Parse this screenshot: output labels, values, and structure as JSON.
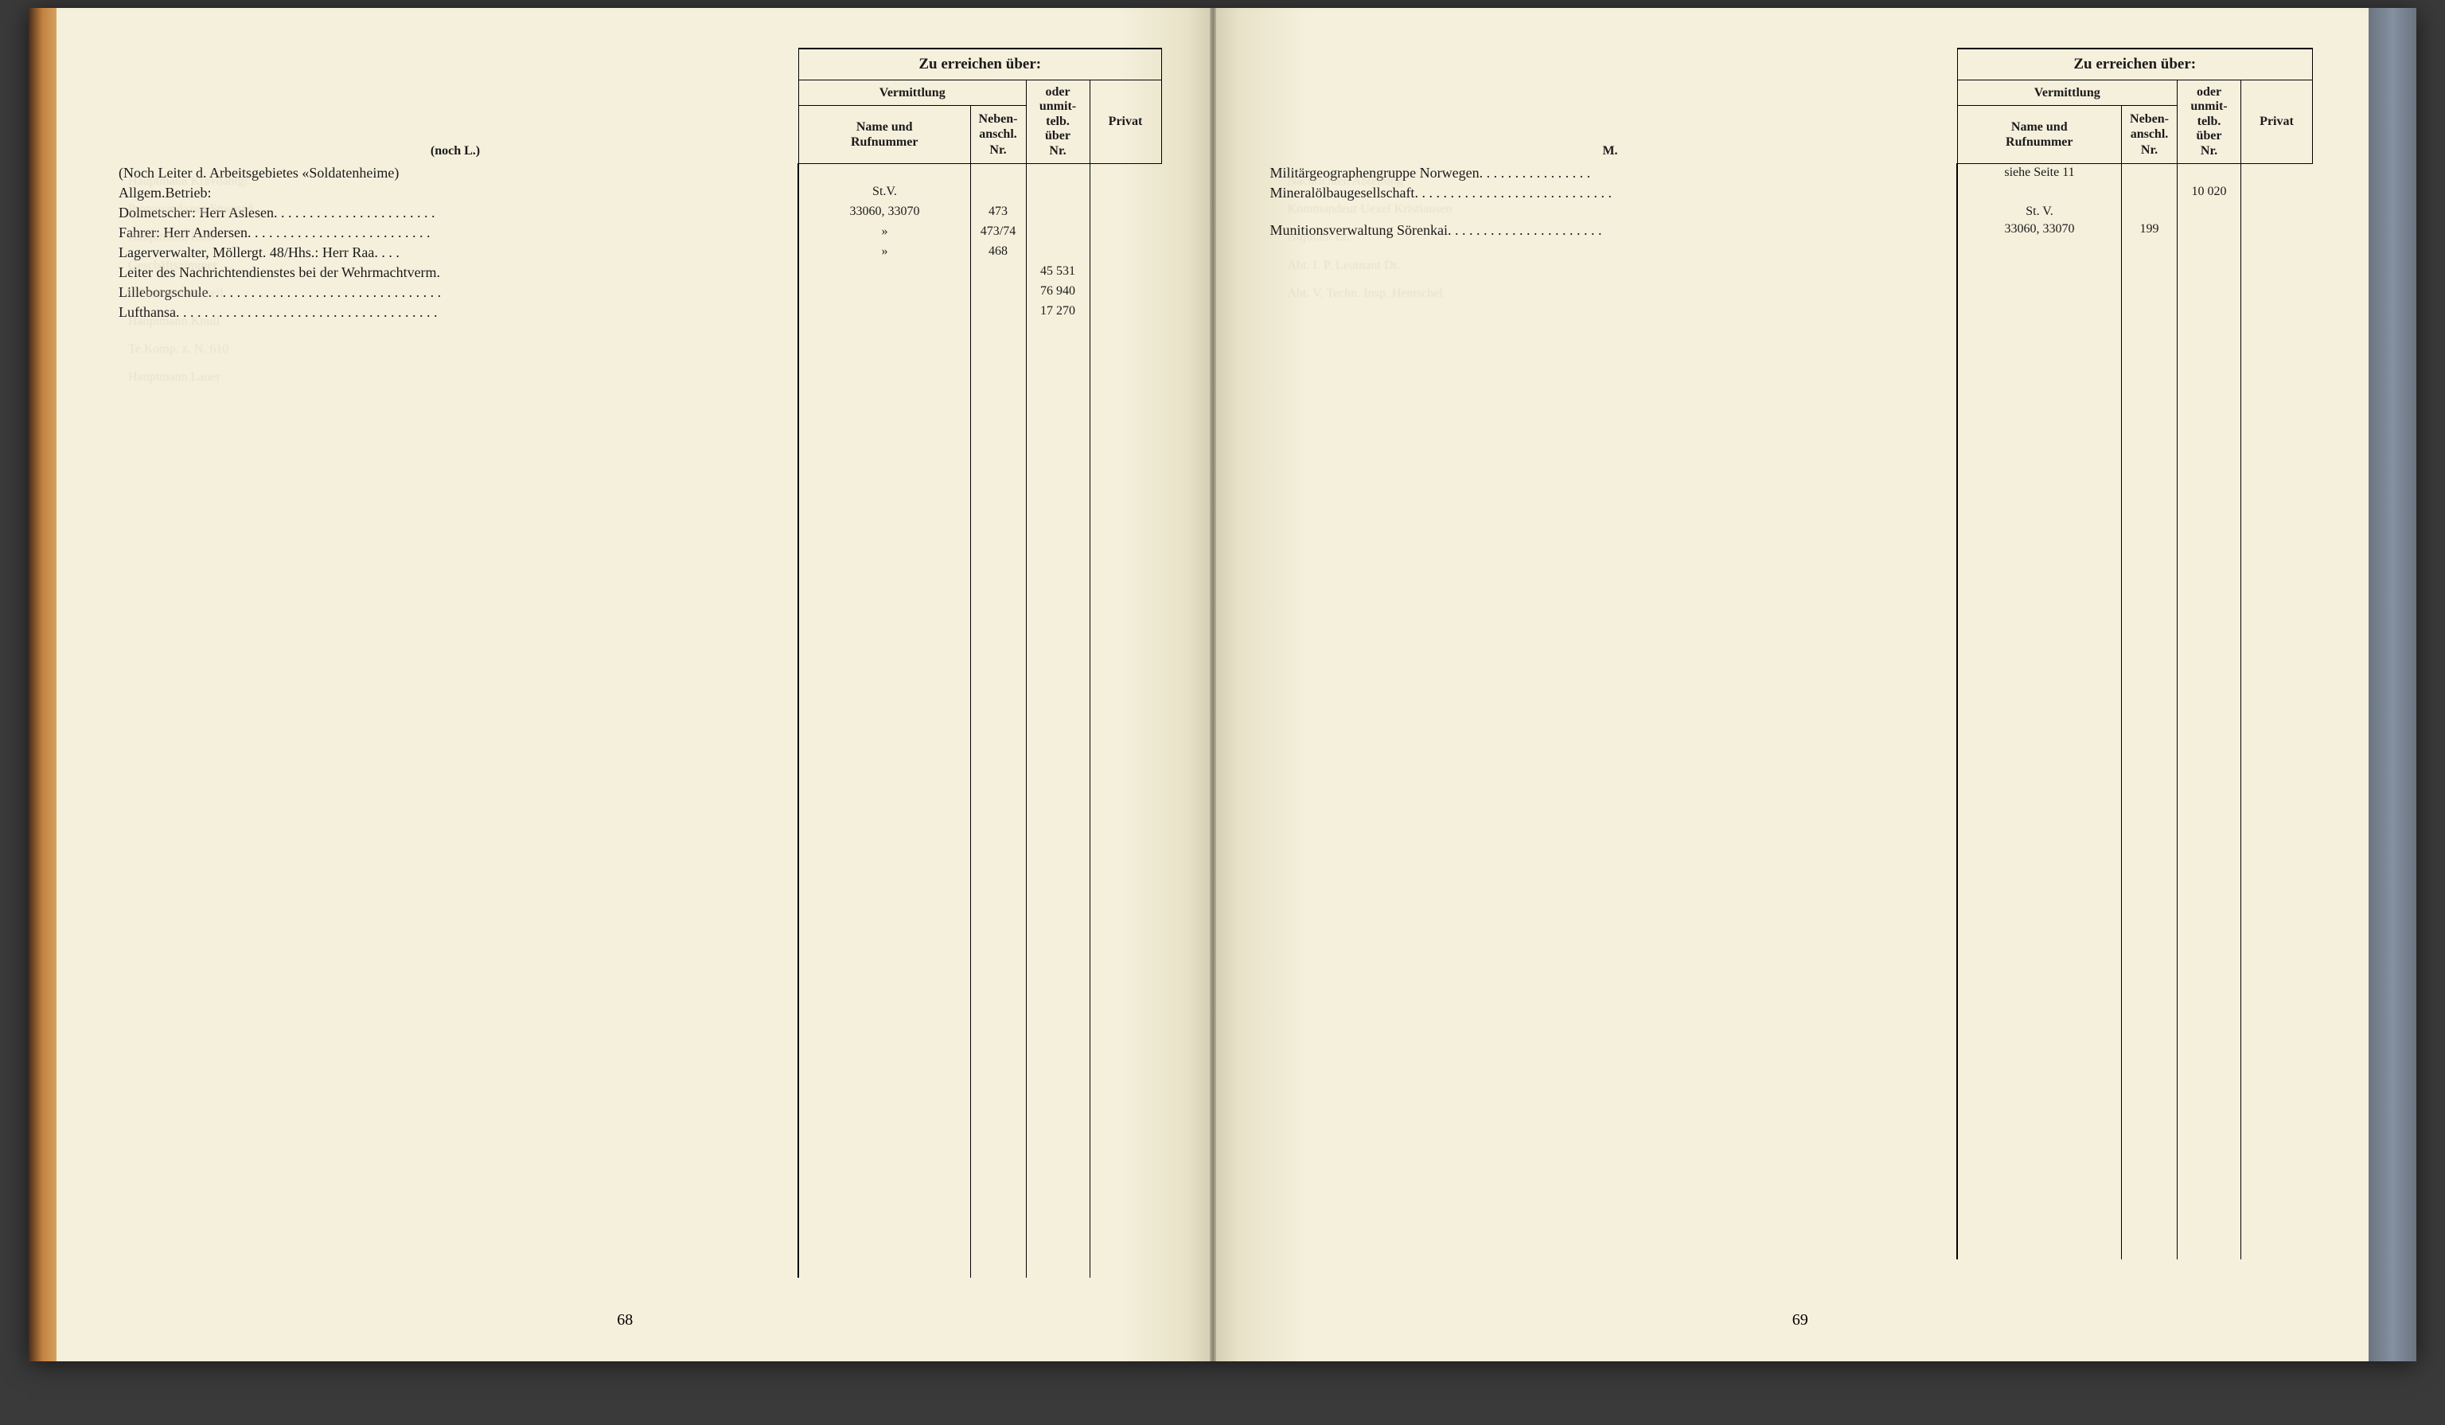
{
  "colors": {
    "page_bg": "#f5f0dc",
    "text": "#1a1a1a",
    "border": "#000000",
    "spine": "#888070",
    "cover_brown": "#c4823e",
    "cover_blue": "#8590a0",
    "bleed": "#d8d3bd"
  },
  "typography": {
    "body_font": "Times New Roman",
    "body_size_pt": 13,
    "header_size_pt": 14
  },
  "table_header": {
    "main": "Zu erreichen über:",
    "vermittlung": "Vermittlung",
    "name_ruf": "Name und\nRufnummer",
    "neben": "Neben-\nanschl.\nNr.",
    "oder": "oder\nunmit-\ntelb.\nüber\nNr.",
    "privat": "Privat"
  },
  "column_widths": {
    "entry": "auto",
    "vermittlung_name": "140px",
    "neben": "70px",
    "unmittelb": "80px",
    "privat": "90px"
  },
  "left_page": {
    "number": "68",
    "section": "(noch L.)",
    "entries": [
      {
        "text": "(Noch Leiter d. Arbeitsgebietes «Soldatenheime)",
        "indent": 0,
        "vermittlung": "",
        "neben": "",
        "unmittelb": "",
        "privat": ""
      },
      {
        "text": "Allgem.Betrieb:",
        "indent": 1,
        "vermittlung": "St.V.",
        "neben": "",
        "unmittelb": "",
        "privat": ""
      },
      {
        "text": "Dolmetscher: Herr Aslesen",
        "dots": " . . . . . . . . . . . . . . . . . . . . . . .",
        "indent": 2,
        "vermittlung": "33060, 33070",
        "neben": "473",
        "unmittelb": "",
        "privat": ""
      },
      {
        "text": "Fahrer: Herr Andersen",
        "dots": " . . . . . . . . . . . . . . . . . . . . . . . . . .",
        "indent": 2,
        "vermittlung": "»",
        "neben": "473/74",
        "unmittelb": "",
        "privat": ""
      },
      {
        "text": "Lagerverwalter, Möllergt. 48/Hhs.: Herr Raa",
        "dots": " . . . .",
        "indent": 2,
        "vermittlung": "»",
        "neben": "468",
        "unmittelb": "",
        "privat": ""
      },
      {
        "text": "Leiter des Nachrichtendienstes bei der Wehrmachtverm.",
        "indent": 0,
        "vermittlung": "",
        "neben": "",
        "unmittelb": "45 531",
        "privat": ""
      },
      {
        "text": "Lilleborgschule",
        "dots": " . . . . . . . . . . . . . . . . . . . . . . . . . . . . . . . . .",
        "indent": 0,
        "vermittlung": "",
        "neben": "",
        "unmittelb": "76 940",
        "privat": ""
      },
      {
        "text": "Lufthansa",
        "dots": " . . . . . . . . . . . . . . . . . . . . . . . . . . . . . . . . . . . . .",
        "indent": 0,
        "vermittlung": "",
        "neben": "",
        "unmittelb": "17 270",
        "privat": ""
      }
    ]
  },
  "right_page": {
    "number": "69",
    "section": "M.",
    "entries": [
      {
        "text": "Militärgeographengruppe Norwegen",
        "dots": " . . . . . . . . . . . . . . . .",
        "indent": 0,
        "vermittlung": "siehe Seite 11",
        "neben": "",
        "unmittelb": "",
        "privat": ""
      },
      {
        "text": "Mineralölbaugesellschaft",
        "dots": " . . . . . . . . . . . . . . . . . . . . . . . . . . . .",
        "indent": 0,
        "vermittlung": "",
        "neben": "",
        "unmittelb": "10 020",
        "privat": ""
      },
      {
        "text": "",
        "indent": 0,
        "vermittlung": "St. V.",
        "neben": "",
        "unmittelb": "",
        "privat": ""
      },
      {
        "text": "Munitionsverwaltung Sörenkai",
        "dots": " . . . . . . . . . . . . . . . . . . . . . .",
        "indent": 0,
        "vermittlung": "33060, 33070",
        "neben": "199",
        "unmittelb": "",
        "privat": ""
      }
    ]
  }
}
